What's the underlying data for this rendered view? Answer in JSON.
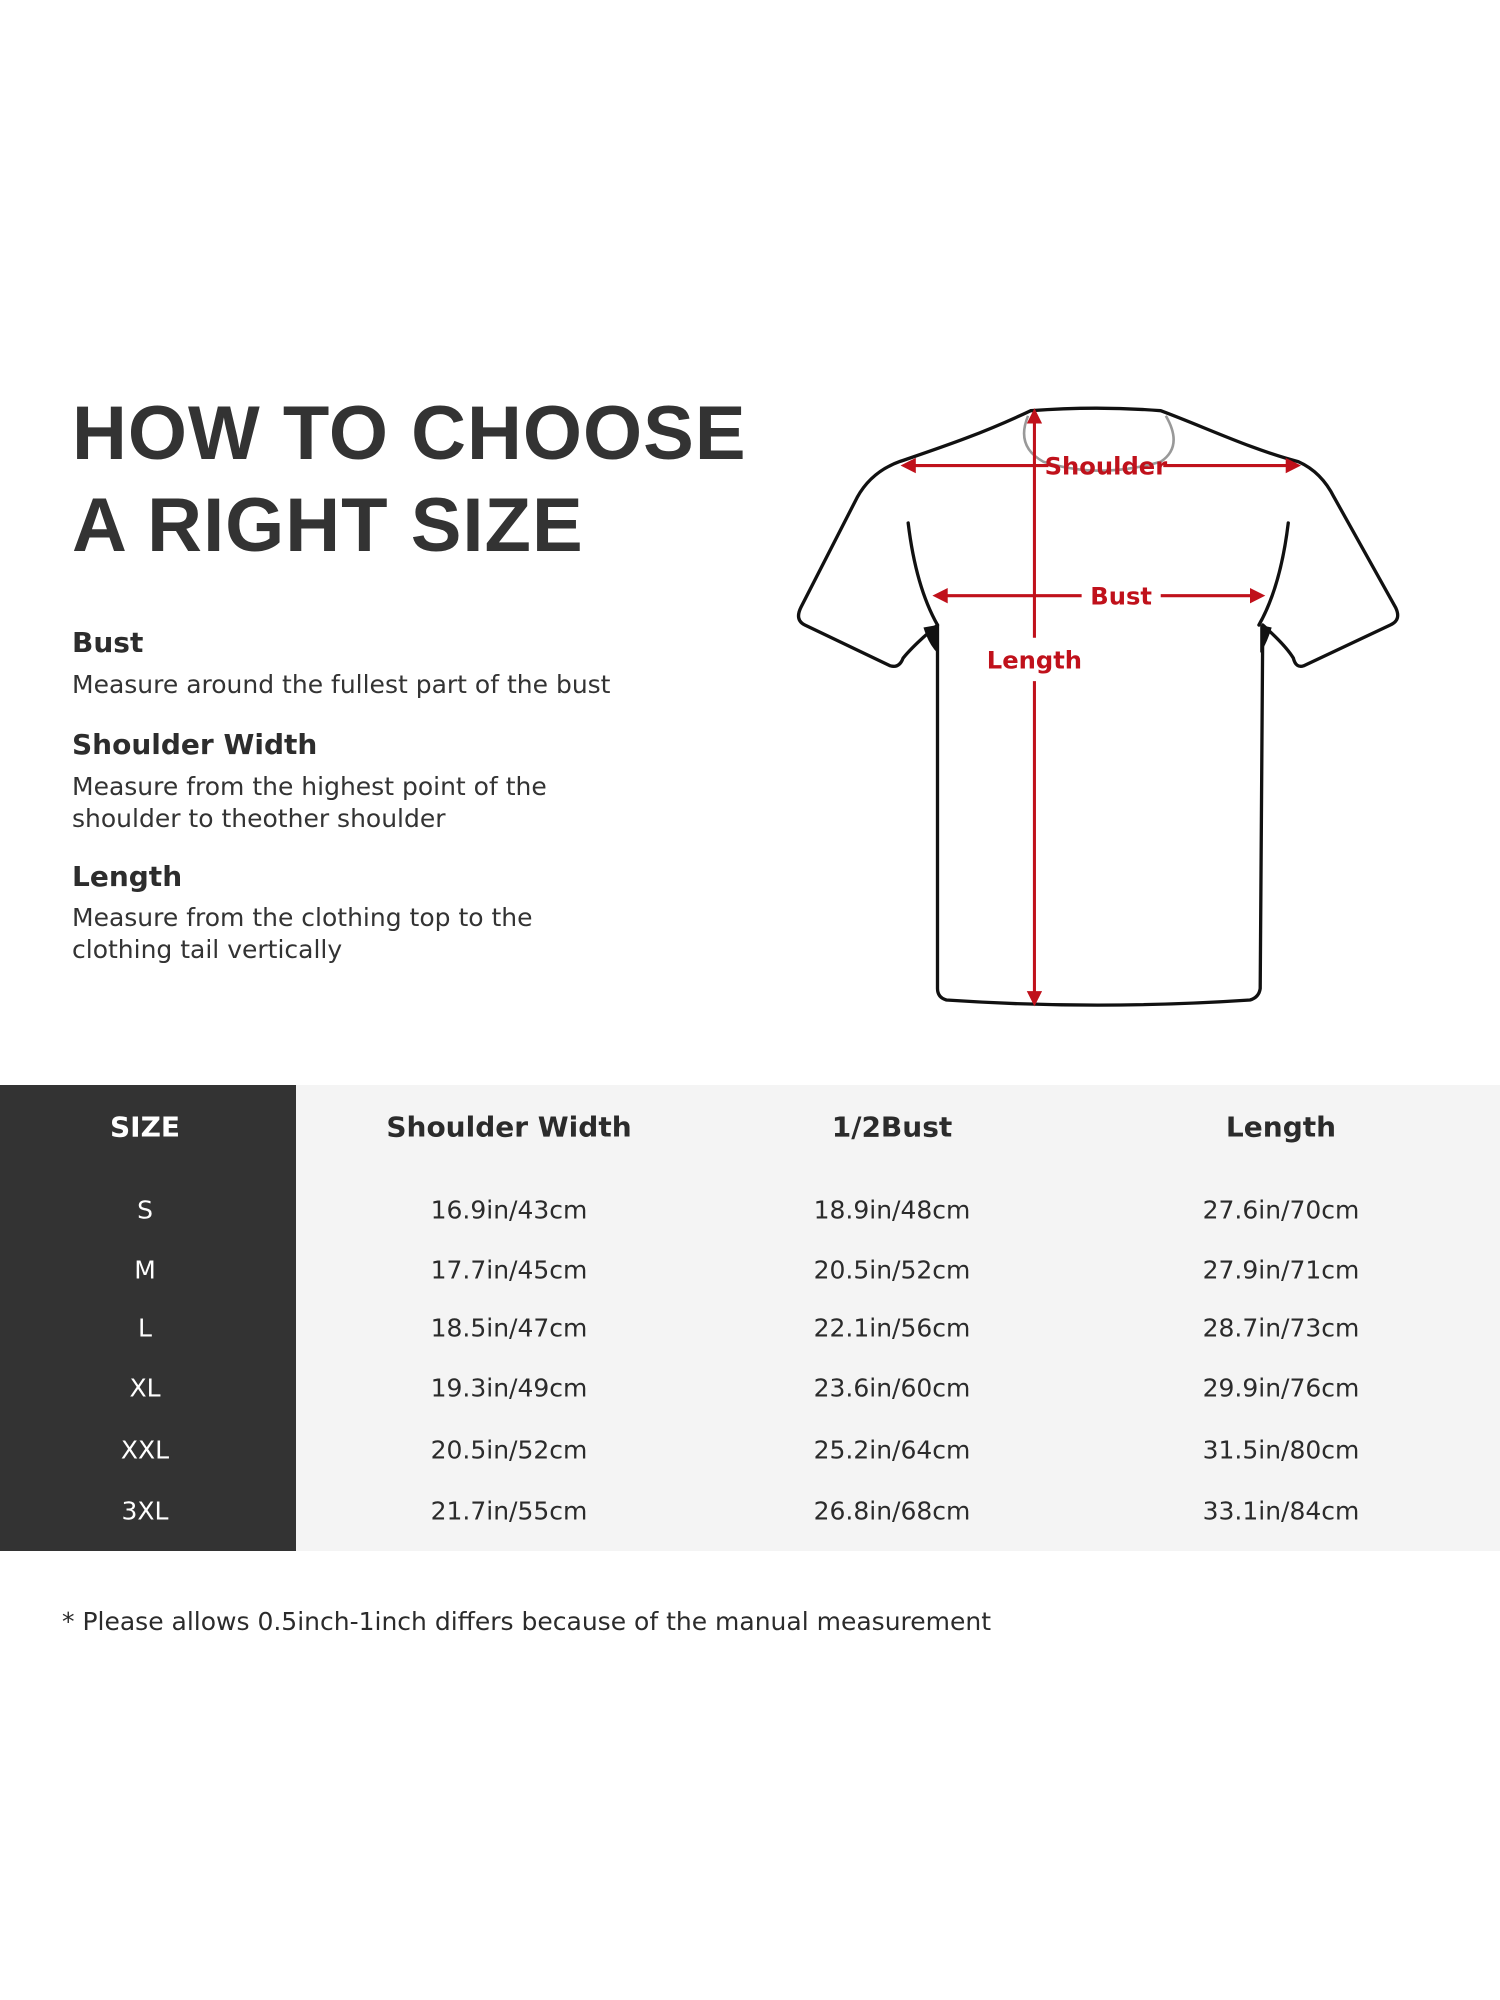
{
  "title": {
    "line1": "HOW TO CHOOSE",
    "line2": "A RIGHT SIZE"
  },
  "guide": [
    {
      "label": "Bust",
      "desc": [
        "Measure around the fullest part of the bust"
      ]
    },
    {
      "label": "Shoulder Width",
      "desc": [
        "Measure from the highest point of the",
        "shoulder to theother shoulder"
      ]
    },
    {
      "label": "Length",
      "desc": [
        "Measure from the clothing top to the",
        "clothing tail vertically"
      ]
    }
  ],
  "diagram": {
    "shoulder": "Shoulder",
    "bust": "Bust",
    "length": "Length",
    "accent_color": "#c0111b",
    "icon": "t-shirt-outline"
  },
  "table": {
    "headers": [
      "SIZE",
      "Shoulder Width",
      "1/2Bust",
      "Length"
    ],
    "rows": [
      [
        "S",
        "16.9in/43cm",
        "18.9in/48cm",
        "27.6in/70cm"
      ],
      [
        "M",
        "17.7in/45cm",
        "20.5in/52cm",
        "27.9in/71cm"
      ],
      [
        "L",
        "18.5in/47cm",
        "22.1in/56cm",
        "28.7in/73cm"
      ],
      [
        "XL",
        "19.3in/49cm",
        "23.6in/60cm",
        "29.9in/76cm"
      ],
      [
        "XXL",
        "20.5in/52cm",
        "25.2in/64cm",
        "31.5in/80cm"
      ],
      [
        "3XL",
        "21.7in/55cm",
        "26.8in/68cm",
        "33.1in/84cm"
      ]
    ],
    "size_column_color": "#333333",
    "body_color": "#f4f4f4"
  },
  "note": "* Please allows 0.5inch-1inch differs because of the  manual measurement"
}
